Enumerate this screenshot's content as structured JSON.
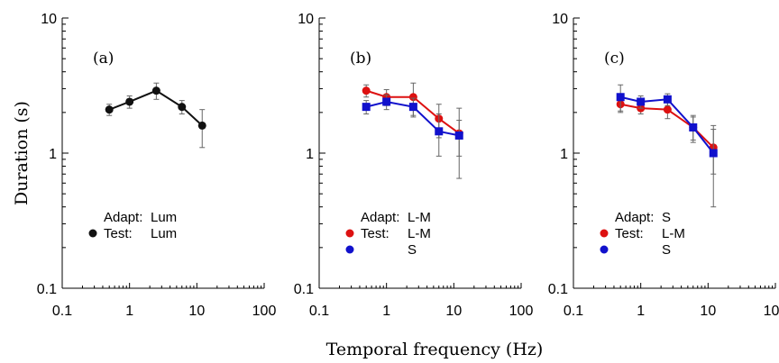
{
  "figure": {
    "ylabel": "Duration (s)",
    "xlabel": "Temporal frequency (Hz)"
  },
  "chart_data": [
    {
      "type": "line",
      "panel_label": "(a)",
      "xscale": "log",
      "yscale": "log",
      "xlim": [
        0.1,
        100
      ],
      "ylim": [
        0.1,
        10
      ],
      "xticks": [
        "0.1",
        "1",
        "10",
        "100"
      ],
      "yticks": [
        "10",
        "1",
        "0.1"
      ],
      "legend": {
        "adapt_label": "Adapt:",
        "adapt_value": "Lum",
        "test_label": "Test:"
      },
      "series": [
        {
          "name": "Lum",
          "color": "#111111",
          "marker": "circle",
          "x": [
            0.5,
            1,
            2.5,
            6,
            12
          ],
          "y": [
            2.1,
            2.4,
            2.9,
            2.2,
            1.6
          ],
          "err": [
            0.2,
            0.25,
            0.4,
            0.25,
            0.5
          ]
        }
      ]
    },
    {
      "type": "line",
      "panel_label": "(b)",
      "xscale": "log",
      "yscale": "log",
      "xlim": [
        0.1,
        100
      ],
      "ylim": [
        0.1,
        10
      ],
      "xticks": [
        "0.1",
        "1",
        "10",
        "100"
      ],
      "yticks": [
        "10",
        "1",
        "0.1"
      ],
      "legend": {
        "adapt_label": "Adapt:",
        "adapt_value": "L-M",
        "test_label": "Test:"
      },
      "series": [
        {
          "name": "L-M",
          "color": "#dd1111",
          "marker": "circle",
          "x": [
            0.5,
            1,
            2.5,
            6,
            12
          ],
          "y": [
            2.9,
            2.6,
            2.6,
            1.8,
            1.4
          ],
          "err": [
            0.3,
            0.35,
            0.7,
            0.5,
            0.75
          ]
        },
        {
          "name": "S",
          "color": "#1111cc",
          "marker": "square",
          "x": [
            0.5,
            1,
            2.5,
            6,
            12
          ],
          "y": [
            2.2,
            2.4,
            2.2,
            1.45,
            1.35
          ],
          "err": [
            0.25,
            0.3,
            0.35,
            0.5,
            0.4
          ]
        }
      ]
    },
    {
      "type": "line",
      "panel_label": "(c)",
      "xscale": "log",
      "yscale": "log",
      "xlim": [
        0.1,
        100
      ],
      "ylim": [
        0.1,
        10
      ],
      "xticks": [
        "0.1",
        "1",
        "10",
        "100"
      ],
      "yticks": [
        "10",
        "1",
        "0.1"
      ],
      "legend": {
        "adapt_label": "Adapt:",
        "adapt_value": "S",
        "test_label": "Test:"
      },
      "series": [
        {
          "name": "L-M",
          "color": "#dd1111",
          "marker": "circle",
          "x": [
            0.5,
            1,
            2.5,
            6,
            12
          ],
          "y": [
            2.3,
            2.15,
            2.1,
            1.55,
            1.1
          ],
          "err": [
            0.25,
            0.2,
            0.3,
            0.35,
            0.4
          ]
        },
        {
          "name": "S",
          "color": "#1111cc",
          "marker": "square",
          "x": [
            0.5,
            1,
            2.5,
            6,
            12
          ],
          "y": [
            2.6,
            2.4,
            2.5,
            1.55,
            1.0
          ],
          "err": [
            0.6,
            0.25,
            0.25,
            0.3,
            0.6
          ]
        }
      ]
    }
  ]
}
